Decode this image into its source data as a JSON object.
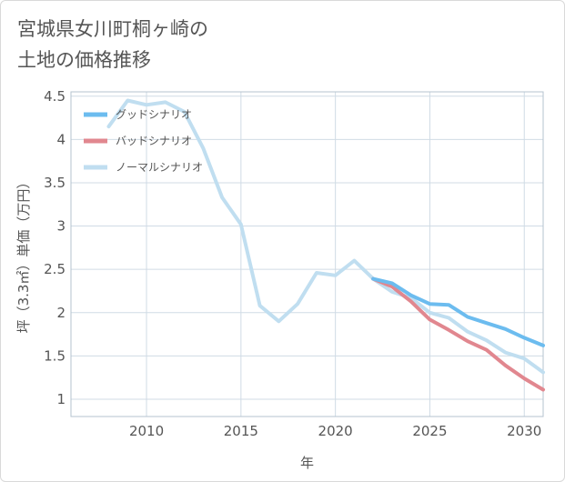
{
  "title": "宮城県女川町桐ヶ崎の\n土地の価格推移",
  "colors": {
    "good": "#6cbcef",
    "bad": "#e1878f",
    "normal": "#c0def0",
    "grid": "#d0dbe5",
    "plot_border": "#b5c3cf"
  },
  "chart_data": {
    "type": "line",
    "title": "宮城県女川町桐ヶ崎の\n土地の価格推移",
    "xlabel": "年",
    "ylabel": "坪（3.3㎡）単価（万円）",
    "xlim": [
      2006,
      2031
    ],
    "ylim": [
      0.8,
      4.55
    ],
    "x_ticks": [
      2010,
      2015,
      2020,
      2025,
      2030
    ],
    "x_tick_labels": [
      "2010",
      "2015",
      "2020",
      "2025",
      "2030"
    ],
    "y_ticks": [
      1,
      1.5,
      2,
      2.5,
      3,
      3.5,
      4,
      4.5
    ],
    "y_tick_labels": [
      "1",
      "1.5",
      "2",
      "2.5",
      "3",
      "3.5",
      "4",
      "4.5"
    ],
    "grid": true,
    "legend_position": "top-left",
    "series": [
      {
        "name": "グッドシナリオ",
        "color_key": "good",
        "x": [
          2022,
          2023,
          2024,
          2025,
          2026,
          2027,
          2028,
          2029,
          2030,
          2031
        ],
        "y": [
          2.39,
          2.34,
          2.2,
          2.1,
          2.09,
          1.95,
          1.88,
          1.81,
          1.71,
          1.62
        ]
      },
      {
        "name": "バッドシナリオ",
        "color_key": "bad",
        "x": [
          2022,
          2023,
          2024,
          2025,
          2026,
          2027,
          2028,
          2029,
          2030,
          2031
        ],
        "y": [
          2.39,
          2.3,
          2.13,
          1.92,
          1.8,
          1.67,
          1.57,
          1.39,
          1.24,
          1.11
        ]
      },
      {
        "name": "ノーマルシナリオ",
        "color_key": "normal",
        "x": [
          2008,
          2009,
          2010,
          2011,
          2012,
          2013,
          2014,
          2015,
          2016,
          2017,
          2018,
          2019,
          2020,
          2021,
          2022,
          2023,
          2024,
          2025,
          2026,
          2027,
          2028,
          2029,
          2030,
          2031
        ],
        "y": [
          4.15,
          4.45,
          4.4,
          4.43,
          4.32,
          3.9,
          3.33,
          3.02,
          2.08,
          1.9,
          2.1,
          2.46,
          2.43,
          2.6,
          2.39,
          2.24,
          2.17,
          2.0,
          1.94,
          1.78,
          1.68,
          1.54,
          1.47,
          1.31
        ]
      }
    ]
  }
}
